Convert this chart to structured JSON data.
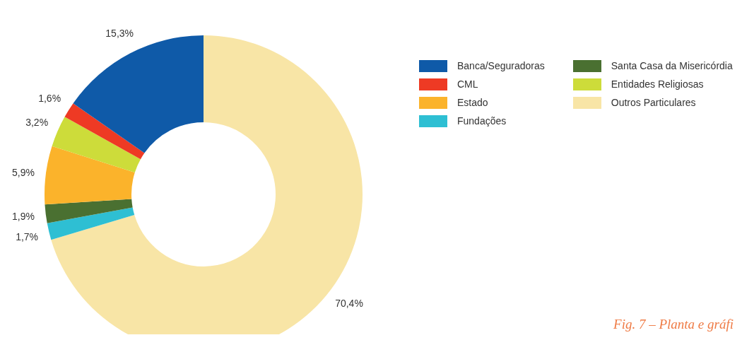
{
  "chart_data": {
    "type": "donut",
    "categories": [
      "Outros Particulares",
      "Fundações",
      "Santa Casa da Misericórdia",
      "Estado",
      "Entidades Religiosas",
      "CML",
      "Banca/Seguradoras"
    ],
    "values": [
      70.4,
      1.7,
      1.9,
      5.9,
      3.2,
      1.6,
      15.3
    ],
    "colors": [
      "#f8e5a6",
      "#2ebfd3",
      "#4a7031",
      "#fbb32b",
      "#cddc3a",
      "#ee3a24",
      "#0f5aa8"
    ],
    "value_labels": [
      "70,4%",
      "1,7%",
      "1,9%",
      "5,9%",
      "3,2%",
      "1,6%",
      "15,3%"
    ],
    "legend": "top right",
    "annotations": [
      "Fig. 7 – Planta e gráfi"
    ]
  }
}
